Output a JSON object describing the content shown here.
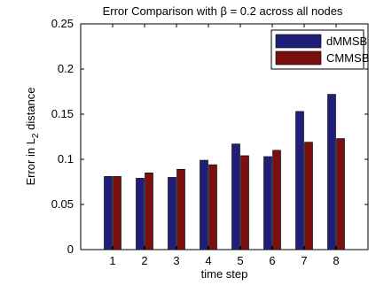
{
  "chart_data": {
    "type": "bar",
    "title": "Error Comparison with β = 0.2 across all nodes",
    "xlabel": "time step",
    "ylabel": "Error in L2 distance",
    "ylabel_main": "Error in L",
    "ylabel_sub": "2",
    "ylabel_tail": " distance",
    "categories": [
      "1",
      "2",
      "3",
      "4",
      "5",
      "6",
      "7",
      "8"
    ],
    "ylim": [
      0,
      0.25
    ],
    "yticks": [
      "0",
      "0.05",
      "0.1",
      "0.15",
      "0.2",
      "0.25"
    ],
    "ytick_values": [
      0,
      0.05,
      0.1,
      0.15,
      0.2,
      0.25
    ],
    "series": [
      {
        "name": "dMMSB",
        "color": "#1f1f7a",
        "values": [
          0.081,
          0.079,
          0.08,
          0.099,
          0.117,
          0.103,
          0.153,
          0.172
        ]
      },
      {
        "name": "CMMSB",
        "color": "#7a1010",
        "values": [
          0.081,
          0.085,
          0.089,
          0.094,
          0.104,
          0.11,
          0.119,
          0.123
        ]
      }
    ],
    "legend_position": "top-right",
    "grid": false
  }
}
